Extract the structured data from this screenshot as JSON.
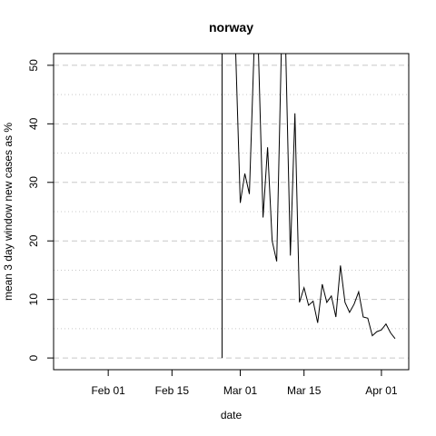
{
  "chart_data": {
    "type": "line",
    "title": "norway",
    "xlabel": "date",
    "ylabel": "mean  3  day window new cases as %",
    "x_axis": {
      "type": "date",
      "range": [
        "2020-01-20",
        "2020-04-07"
      ],
      "ticks": [
        {
          "date": "2020-02-01",
          "label": "Feb 01"
        },
        {
          "date": "2020-02-15",
          "label": "Feb 15"
        },
        {
          "date": "2020-03-01",
          "label": "Mar 01"
        },
        {
          "date": "2020-03-15",
          "label": "Mar 15"
        },
        {
          "date": "2020-04-01",
          "label": "Apr 01"
        }
      ]
    },
    "y_axis": {
      "range": [
        -2,
        52
      ],
      "ticks": [
        0,
        10,
        20,
        30,
        40,
        50
      ],
      "minor_gridlines": [
        5,
        15,
        25,
        35,
        45
      ]
    },
    "grid": true,
    "legend": "none",
    "line_color": "#000000",
    "grid_color": "#c8c8c8",
    "series": [
      {
        "points": [
          {
            "x": "2020-02-26",
            "y": 0
          },
          {
            "x": "2020-02-26",
            "y": 52
          },
          {
            "x": "2020-02-29",
            "y": 52
          },
          {
            "x": "2020-03-01",
            "y": 26.5
          },
          {
            "x": "2020-03-02",
            "y": 31.5
          },
          {
            "x": "2020-03-03",
            "y": 28
          },
          {
            "x": "2020-03-04",
            "y": 52
          },
          {
            "x": "2020-03-05",
            "y": 52
          },
          {
            "x": "2020-03-06",
            "y": 24
          },
          {
            "x": "2020-03-07",
            "y": 36
          },
          {
            "x": "2020-03-08",
            "y": 20
          },
          {
            "x": "2020-03-09",
            "y": 16.5
          },
          {
            "x": "2020-03-10",
            "y": 52
          },
          {
            "x": "2020-03-11",
            "y": 52
          },
          {
            "x": "2020-03-12",
            "y": 17.5
          },
          {
            "x": "2020-03-13",
            "y": 41.8
          },
          {
            "x": "2020-03-14",
            "y": 9.5
          },
          {
            "x": "2020-03-15",
            "y": 12
          },
          {
            "x": "2020-03-16",
            "y": 9
          },
          {
            "x": "2020-03-17",
            "y": 9.7
          },
          {
            "x": "2020-03-18",
            "y": 6
          },
          {
            "x": "2020-03-19",
            "y": 12.6
          },
          {
            "x": "2020-03-20",
            "y": 9.5
          },
          {
            "x": "2020-03-21",
            "y": 10.6
          },
          {
            "x": "2020-03-22",
            "y": 7
          },
          {
            "x": "2020-03-23",
            "y": 15.8
          },
          {
            "x": "2020-03-24",
            "y": 9.5
          },
          {
            "x": "2020-03-25",
            "y": 7.8
          },
          {
            "x": "2020-03-26",
            "y": 9.2
          },
          {
            "x": "2020-03-27",
            "y": 11.3
          },
          {
            "x": "2020-03-28",
            "y": 7
          },
          {
            "x": "2020-03-29",
            "y": 6.8
          },
          {
            "x": "2020-03-30",
            "y": 3.8
          },
          {
            "x": "2020-03-31",
            "y": 4.5
          },
          {
            "x": "2020-04-01",
            "y": 4.8
          },
          {
            "x": "2020-04-02",
            "y": 5.8
          },
          {
            "x": "2020-04-03",
            "y": 4.3
          },
          {
            "x": "2020-04-04",
            "y": 3.3
          }
        ]
      }
    ]
  }
}
